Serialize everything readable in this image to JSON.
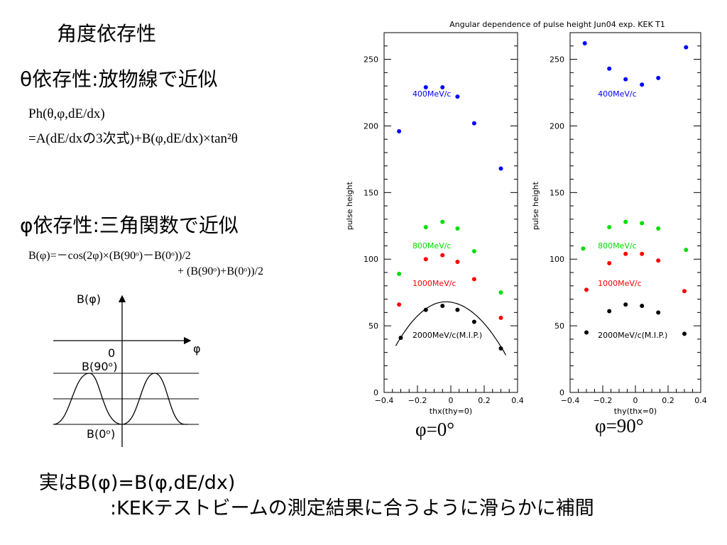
{
  "slide": {
    "title": "角度依存性",
    "theta_heading": "θ依存性:放物線で近似",
    "theta_formula_1": "Ph(θ,φ,dE/dx)",
    "theta_formula_2": "=A(dE/dxの3次式)+B(φ,dE/dx)×tan²θ",
    "phi_heading": "φ依存性:三角関数で近似",
    "phi_formula_1": "B(φ)=－cos(2φ)×(B(90ᵒ)－B(0ᵒ))/2",
    "phi_formula_2": "+ (B(90ᵒ)+B(0ᵒ))/2",
    "bottom_line_1": "実はB(φ)=B(φ,dE/dx)",
    "bottom_line_2": ":KEKテストビームの測定結果に合うように滑らかに補間",
    "phi0_caption": "φ=0°",
    "phi90_caption": "φ=90°"
  },
  "sketch": {
    "y_label": "B(φ)",
    "x_label": "φ",
    "origin": "0",
    "b90_label": "B(90ᵒ)",
    "b0_label": "B(0ᵒ)"
  },
  "colors": {
    "400": "#0000ff",
    "800": "#00dd00",
    "1000": "#ff0000",
    "2000": "#000000"
  },
  "chart_data": [
    {
      "type": "scatter",
      "title": "Angular dependence of pulse height Jun04 exp. KEK T1",
      "xlabel": "thx(thy=0)",
      "ylabel": "pulse height",
      "xlim": [
        -0.4,
        0.4
      ],
      "ylim": [
        0,
        270
      ],
      "xticks": [
        "−0.4",
        "−0.2",
        "0",
        "0.2",
        "0.4"
      ],
      "yticks": [
        "0",
        "50",
        "100",
        "150",
        "200",
        "250"
      ],
      "series": [
        {
          "name": "400MeV/c",
          "color": "#0000ff",
          "x": [
            -0.31,
            -0.15,
            -0.05,
            0.04,
            0.14,
            0.3
          ],
          "y": [
            196,
            229,
            229,
            222,
            202,
            168
          ]
        },
        {
          "name": "800MeV/c",
          "color": "#00dd00",
          "x": [
            -0.31,
            -0.15,
            -0.05,
            0.04,
            0.14,
            0.3
          ],
          "y": [
            89,
            124,
            128,
            123,
            106,
            75
          ]
        },
        {
          "name": "1000MeV/c",
          "color": "#ff0000",
          "x": [
            -0.31,
            -0.15,
            -0.05,
            0.04,
            0.14,
            0.3
          ],
          "y": [
            66,
            100,
            103,
            98,
            85,
            56
          ]
        },
        {
          "name": "2000MeV/c(M.I.P.)",
          "color": "#000000",
          "x": [
            -0.3,
            -0.15,
            -0.05,
            0.04,
            0.14,
            0.3
          ],
          "y": [
            41,
            62,
            65,
            62,
            53,
            33
          ]
        }
      ],
      "fit_curve": {
        "series": "2000MeV/c(M.I.P.)",
        "x_range": [
          -0.33,
          0.33
        ],
        "peak_x": -0.03,
        "peak_y": 68,
        "end_left": 35,
        "end_right": 28
      }
    },
    {
      "type": "scatter",
      "title": "",
      "xlabel": "thy(thx=0)",
      "ylabel": "pulse height",
      "xlim": [
        -0.4,
        0.4
      ],
      "ylim": [
        0,
        270
      ],
      "xticks": [
        "−0.4",
        "−0.2",
        "0",
        "0.2",
        "0.4"
      ],
      "yticks": [
        "0",
        "50",
        "100",
        "150",
        "200",
        "250"
      ],
      "series": [
        {
          "name": "400MeV/c",
          "color": "#0000ff",
          "x": [
            -0.31,
            -0.16,
            -0.06,
            0.04,
            0.14,
            0.31
          ],
          "y": [
            262,
            243,
            235,
            231,
            236,
            259
          ]
        },
        {
          "name": "800MeV/c",
          "color": "#00dd00",
          "x": [
            -0.32,
            -0.16,
            -0.06,
            0.04,
            0.14,
            0.31
          ],
          "y": [
            108,
            124,
            128,
            127,
            123,
            107
          ]
        },
        {
          "name": "1000MeV/c",
          "color": "#ff0000",
          "x": [
            -0.3,
            -0.16,
            -0.06,
            0.04,
            0.14,
            0.3
          ],
          "y": [
            77,
            97,
            104,
            104,
            99,
            76
          ]
        },
        {
          "name": "2000MeV/c(M.I.P.)",
          "color": "#000000",
          "x": [
            -0.3,
            -0.16,
            -0.06,
            0.04,
            0.14,
            0.3
          ],
          "y": [
            45,
            61,
            66,
            65,
            60,
            44
          ]
        }
      ]
    }
  ]
}
